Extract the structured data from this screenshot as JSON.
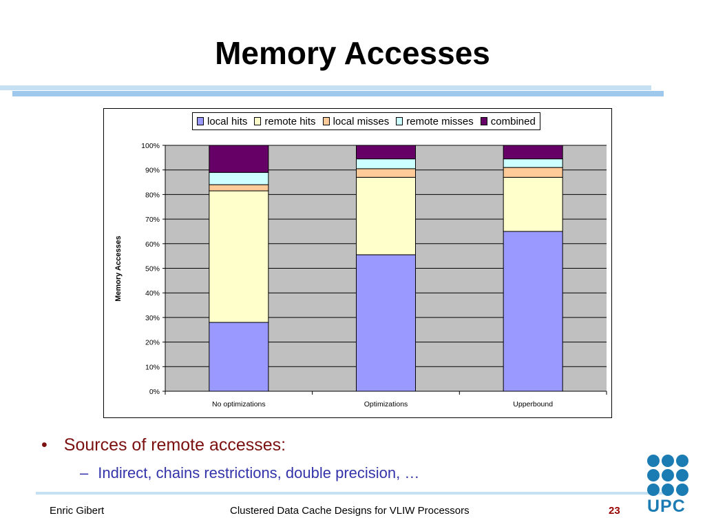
{
  "slide": {
    "title": "Memory Accesses",
    "bullets": [
      "Sources of remote accesses:"
    ],
    "sub_bullets": [
      "Indirect, chains restrictions, double precision, …"
    ],
    "footer_left": "Enric Gibert",
    "footer_center": "Clustered Data Cache Designs for VLIW Processors",
    "page_number": "23",
    "logo_text": "UPC"
  },
  "colors": {
    "local hits": "#9999ff",
    "remote hits": "#ffffcc",
    "local misses": "#ffcc99",
    "remote misses": "#ccffff",
    "combined": "#660066"
  },
  "chart_data": {
    "type": "bar",
    "stacked": true,
    "title": "",
    "xlabel": "",
    "ylabel": "Memory Accesses",
    "categories": [
      "No optimizations",
      "Optimizations",
      "Upperbound"
    ],
    "series": [
      {
        "name": "local hits",
        "values": [
          28,
          55.5,
          65
        ]
      },
      {
        "name": "remote hits",
        "values": [
          53.5,
          31.5,
          22
        ]
      },
      {
        "name": "local misses",
        "values": [
          2.5,
          3.5,
          4
        ]
      },
      {
        "name": "remote misses",
        "values": [
          5,
          4,
          3.5
        ]
      },
      {
        "name": "combined",
        "values": [
          11,
          5.5,
          5.5
        ]
      }
    ],
    "ylim": [
      0,
      100
    ],
    "y_ticks": [
      "0%",
      "10%",
      "20%",
      "30%",
      "40%",
      "50%",
      "60%",
      "70%",
      "80%",
      "90%",
      "100%"
    ],
    "grid": true,
    "plot_background": "#c0c0c0",
    "legend": "top"
  }
}
